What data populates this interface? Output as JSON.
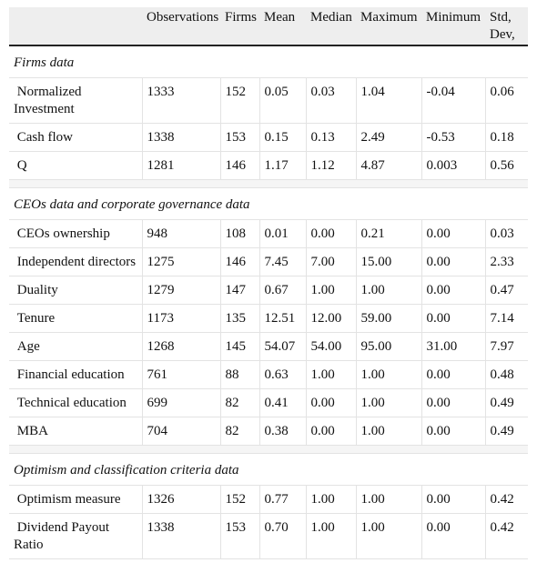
{
  "table": {
    "headers": [
      "",
      "Observations",
      "Firms",
      "Mean",
      "Median",
      "Maximum",
      "Minimum",
      "Std, Dev,"
    ],
    "sections": [
      {
        "title": "Firms data",
        "rows": [
          [
            "Normalized Investment",
            "1333",
            "152",
            "0.05",
            "0.03",
            "1.04",
            "-0.04",
            "0.06"
          ],
          [
            "Cash flow",
            "1338",
            "153",
            "0.15",
            "0.13",
            "2.49",
            "-0.53",
            "0.18"
          ],
          [
            "Q",
            "1281",
            "146",
            "1.17",
            "1.12",
            "4.87",
            "0.003",
            "0.56"
          ]
        ]
      },
      {
        "title": "CEOs data and corporate governance data",
        "rows": [
          [
            "CEOs ownership",
            "948",
            "108",
            "0.01",
            "0.00",
            "0.21",
            "0.00",
            "0.03"
          ],
          [
            "Independent directors",
            "1275",
            "146",
            "7.45",
            "7.00",
            "15.00",
            "0.00",
            "2.33"
          ],
          [
            "Duality",
            "1279",
            "147",
            "0.67",
            "1.00",
            "1.00",
            "0.00",
            "0.47"
          ],
          [
            "Tenure",
            "1173",
            "135",
            "12.51",
            "12.00",
            "59.00",
            "0.00",
            "7.14"
          ],
          [
            "Age",
            "1268",
            "145",
            "54.07",
            "54.00",
            "95.00",
            "31.00",
            "7.97"
          ],
          [
            "Financial education",
            "761",
            "88",
            "0.63",
            "1.00",
            "1.00",
            "0.00",
            "0.48"
          ],
          [
            "Technical education",
            "699",
            "82",
            "0.41",
            "0.00",
            "1.00",
            "0.00",
            "0.49"
          ],
          [
            "MBA",
            "704",
            "82",
            "0.38",
            "0.00",
            "1.00",
            "0.00",
            "0.49"
          ]
        ]
      },
      {
        "title": "Optimism and classification criteria data",
        "rows": [
          [
            "Optimism measure",
            "1326",
            "152",
            "0.77",
            "1.00",
            "1.00",
            "0.00",
            "0.42"
          ],
          [
            "Dividend Payout Ratio",
            "1338",
            "153",
            "0.70",
            "1.00",
            "1.00",
            "0.00",
            "0.42"
          ]
        ]
      }
    ]
  }
}
